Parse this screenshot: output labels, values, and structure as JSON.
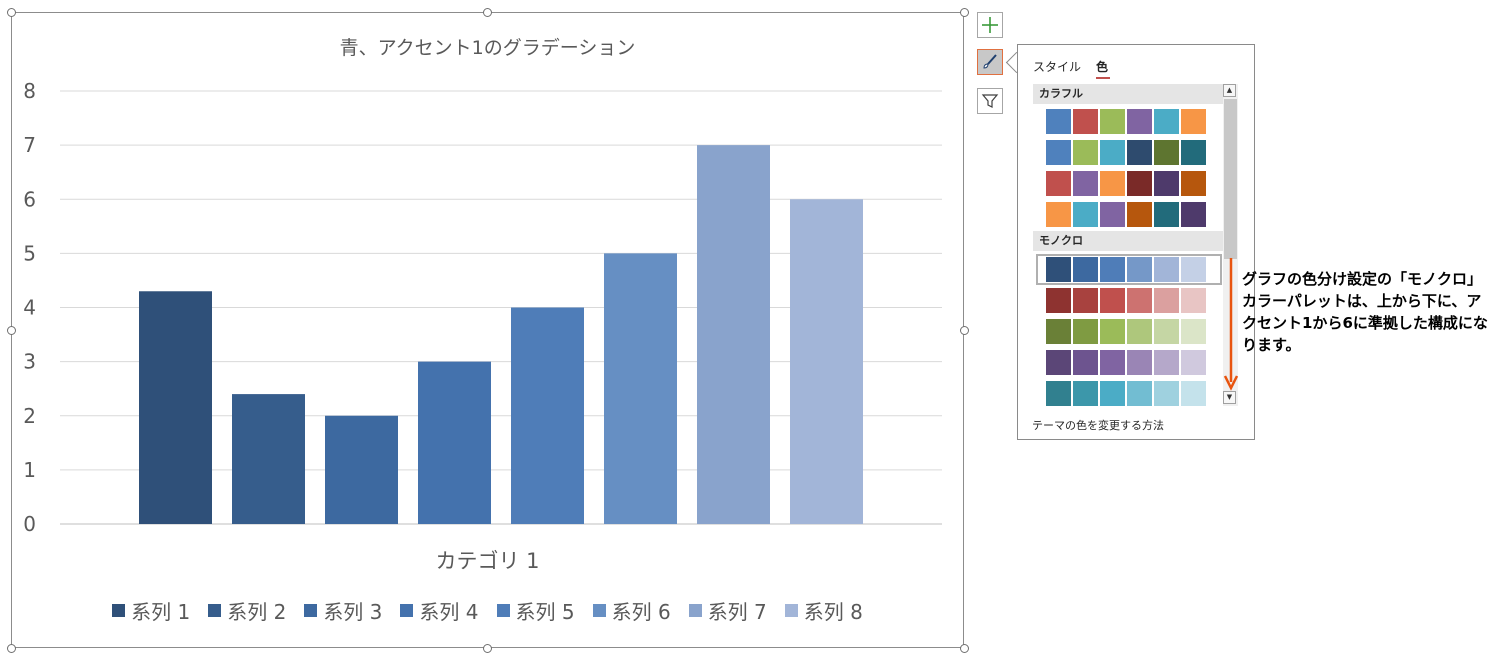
{
  "chart_data": {
    "type": "bar",
    "title": "青、アクセント1のグラデーション",
    "xlabel": "カテゴリ 1",
    "ylabel": "",
    "categories": [
      "カテゴリ 1"
    ],
    "ylim": [
      0,
      8
    ],
    "yticks": [
      "0",
      "1",
      "2",
      "3",
      "4",
      "5",
      "6",
      "7",
      "8"
    ],
    "grid": true,
    "legend_position": "bottom",
    "series": [
      {
        "name": "系列 1",
        "values": [
          4.3
        ],
        "color": "#2f5079"
      },
      {
        "name": "系列 2",
        "values": [
          2.4
        ],
        "color": "#365d8c"
      },
      {
        "name": "系列 3",
        "values": [
          2.0
        ],
        "color": "#3d69a0"
      },
      {
        "name": "系列 4",
        "values": [
          3.0
        ],
        "color": "#4472ad"
      },
      {
        "name": "系列 5",
        "values": [
          4.0
        ],
        "color": "#4f7db8"
      },
      {
        "name": "系列 6",
        "values": [
          5.0
        ],
        "color": "#668fc3"
      },
      {
        "name": "系列 7",
        "values": [
          7.0
        ],
        "color": "#89a3cc"
      },
      {
        "name": "系列 8",
        "values": [
          6.0
        ],
        "color": "#a2b5d8"
      }
    ]
  },
  "side_buttons": [
    {
      "icon": "plus-icon"
    },
    {
      "icon": "brush-icon",
      "active": true
    },
    {
      "icon": "filter-icon"
    }
  ],
  "panel": {
    "tabs": [
      "スタイル",
      "色"
    ],
    "active_tab": "色",
    "colorful_header": "カラフル",
    "colorful_rows": [
      [
        "#4f81bd",
        "#c0504d",
        "#9bbb59",
        "#8064a2",
        "#4bacc6",
        "#f79646"
      ],
      [
        "#4f81bd",
        "#9bbb59",
        "#4bacc6",
        "#2e4b6e",
        "#5e7530",
        "#226b7b"
      ],
      [
        "#c0504d",
        "#8064a2",
        "#f79646",
        "#7a2a28",
        "#4e3a6b",
        "#b6570d"
      ],
      [
        "#f79646",
        "#4bacc6",
        "#8064a2",
        "#b6570d",
        "#226b7b",
        "#4e3a6b"
      ]
    ],
    "mono_header": "モノクロ",
    "mono_rows": [
      [
        "#2f5079",
        "#3d69a0",
        "#4f7db8",
        "#7598c8",
        "#a2b5d8",
        "#c4d0e6"
      ],
      [
        "#8e3330",
        "#a8423f",
        "#c0504d",
        "#cd7270",
        "#dba09f",
        "#e8c5c4"
      ],
      [
        "#6a8037",
        "#7f9b42",
        "#9bbb59",
        "#aec77c",
        "#c5d6a4",
        "#dbe5c8"
      ],
      [
        "#5b4677",
        "#6d548f",
        "#8064a2",
        "#9a85b5",
        "#b5a8ca",
        "#d0c9de"
      ],
      [
        "#31808f",
        "#3c97aa",
        "#4bacc6",
        "#72bdd2",
        "#9fd1df",
        "#c4e2eb"
      ]
    ],
    "footer_link": "テーマの色を変更する方法"
  },
  "annotation": {
    "text": "グラフの色分け設定の「モノクロ」カラーパレットは、上から下に、アクセント1から6に準拠した構成になります。",
    "arrow_color": "#e8540f"
  }
}
